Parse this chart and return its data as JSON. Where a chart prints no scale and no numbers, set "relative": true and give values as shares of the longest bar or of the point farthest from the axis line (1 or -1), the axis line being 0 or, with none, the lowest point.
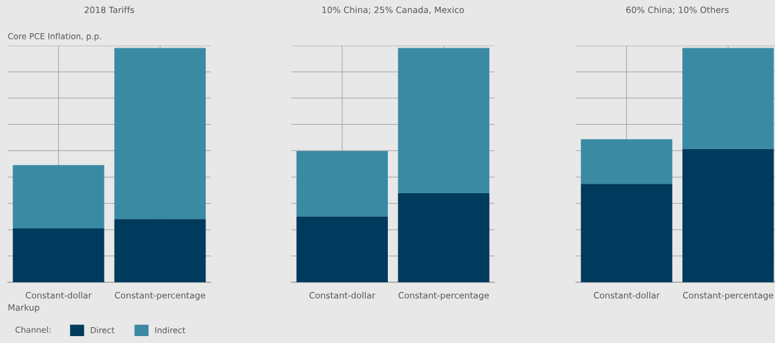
{
  "chart_data": [
    {
      "type": "bar",
      "title": "2018 Tariffs",
      "ylabel": "Core PCE Inflation, p.p.",
      "xlabel": "Markup",
      "legend_title": "Channel:",
      "legend": "bottom",
      "categories": [
        "Constant-dollar",
        "Constant-percentage"
      ],
      "stacked": true,
      "relative": true,
      "grid": true,
      "series": [
        {
          "name": "Direct",
          "color": "#003a5c",
          "values": [
            0.23,
            0.27
          ]
        },
        {
          "name": "Indirect",
          "color": "#3a8aa3",
          "values": [
            0.27,
            0.73
          ]
        }
      ]
    },
    {
      "type": "bar",
      "title": "10% China; 25% Canada, Mexico",
      "categories": [
        "Constant-dollar",
        "Constant-percentage"
      ],
      "stacked": true,
      "relative": true,
      "grid": true,
      "series": [
        {
          "color": "#003a5c",
          "values": [
            0.28,
            0.38
          ]
        },
        {
          "color": "#3a8aa3",
          "values": [
            0.28,
            0.62
          ]
        }
      ]
    },
    {
      "type": "bar",
      "title": "60% China; 10% Others",
      "categories": [
        "Constant-dollar",
        "Constant-percentage"
      ],
      "stacked": true,
      "relative": true,
      "grid": true,
      "series": [
        {
          "color": "#003a5c",
          "values": [
            0.42,
            0.57
          ]
        },
        {
          "color": "#3a8aa3",
          "values": [
            0.19,
            0.43
          ]
        }
      ]
    }
  ]
}
